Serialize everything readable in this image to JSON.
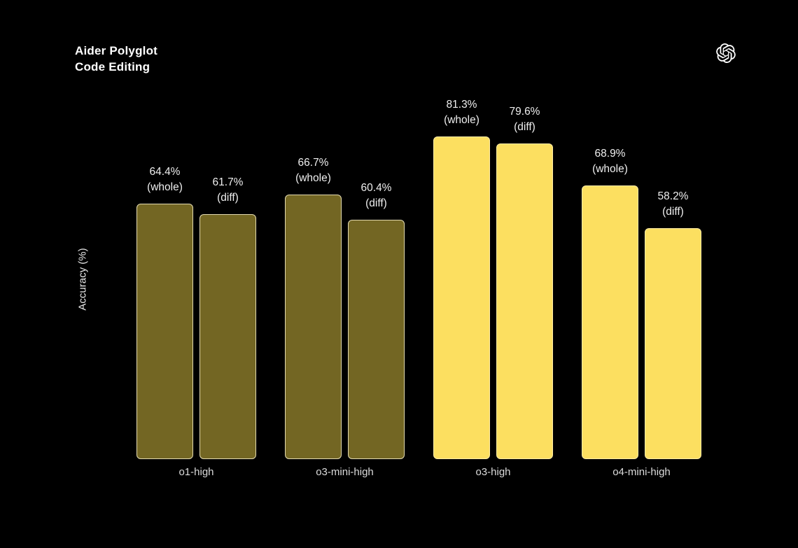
{
  "header": {
    "title_line1": "Aider Polyglot",
    "title_line2": "Code Editing",
    "logo": "openai-logo"
  },
  "chart_data": {
    "type": "bar",
    "title": "Aider Polyglot Code Editing",
    "xlabel": "",
    "ylabel": "Accuracy (%)",
    "ylim": [
      0,
      100
    ],
    "grid": false,
    "legend_position": "none",
    "categories": [
      "o1-high",
      "o3-mini-high",
      "o3-high",
      "o4-mini-high"
    ],
    "series": [
      {
        "name": "whole",
        "values": [
          64.4,
          66.7,
          81.3,
          68.9
        ]
      },
      {
        "name": "diff",
        "values": [
          61.7,
          60.4,
          79.6,
          58.2
        ]
      }
    ],
    "bar_value_labels": [
      [
        "64.4% (whole)",
        "61.7% (diff)"
      ],
      [
        "66.7% (whole)",
        "60.4% (diff)"
      ],
      [
        "81.3% (whole)",
        "79.6% (diff)"
      ],
      [
        "68.9% (whole)",
        "58.2% (diff)"
      ]
    ],
    "highlighted": [
      false,
      false,
      true,
      true
    ],
    "colors": {
      "background": "#000000",
      "bar_highlight_fill": "#fcdf60",
      "bar_highlight_border": "#ffeda6",
      "bar_muted_fill": "#736623",
      "bar_muted_border": "#e4dbb0",
      "value_label_text": "#efefef",
      "category_label_text": "#dcdcdc",
      "title_text": "#ffffff"
    }
  }
}
